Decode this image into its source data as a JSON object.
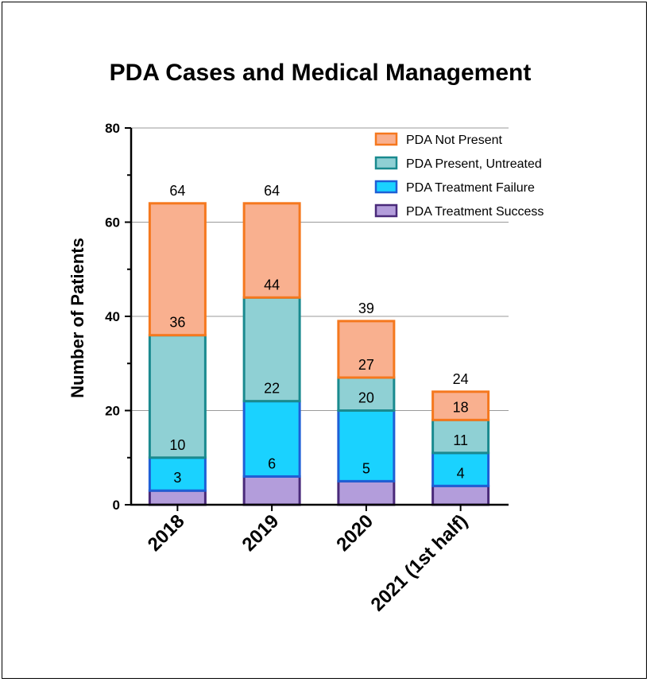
{
  "chart_data": {
    "type": "bar",
    "stacked": true,
    "title": "PDA Cases and Medical Management",
    "xlabel": "",
    "ylabel": "Number of Patients",
    "ylim": [
      0,
      80
    ],
    "yticks": [
      "0",
      "20",
      "40",
      "60",
      "80"
    ],
    "grid": true,
    "legend_position": "top-right",
    "categories": [
      "2018",
      "2019",
      "2020",
      "2021 (1st half)"
    ],
    "cumulative_labels": [
      [
        "3",
        "10",
        "36",
        "64"
      ],
      [
        "6",
        "22",
        "44",
        "64"
      ],
      [
        "5",
        "20",
        "27",
        "39"
      ],
      [
        "4",
        "11",
        "18",
        "24"
      ]
    ],
    "series": [
      {
        "name": "PDA Treatment Success",
        "values": [
          3,
          6,
          5,
          4
        ],
        "fill": "#b39ddb",
        "stroke": "#4a2a7a"
      },
      {
        "name": "PDA Treatment Failure",
        "values": [
          7,
          16,
          15,
          7
        ],
        "fill": "#1ad2ff",
        "stroke": "#1f5fd6"
      },
      {
        "name": "PDA Present, Untreated",
        "values": [
          26,
          22,
          7,
          7
        ],
        "fill": "#8fd0d4",
        "stroke": "#1a8a8f"
      },
      {
        "name": "PDA Not Present",
        "values": [
          28,
          20,
          12,
          6
        ],
        "fill": "#f9b08f",
        "stroke": "#f5781e"
      }
    ],
    "legend_order": [
      "PDA Not Present",
      "PDA Present, Untreated",
      "PDA Treatment Failure",
      "PDA Treatment Success"
    ]
  }
}
